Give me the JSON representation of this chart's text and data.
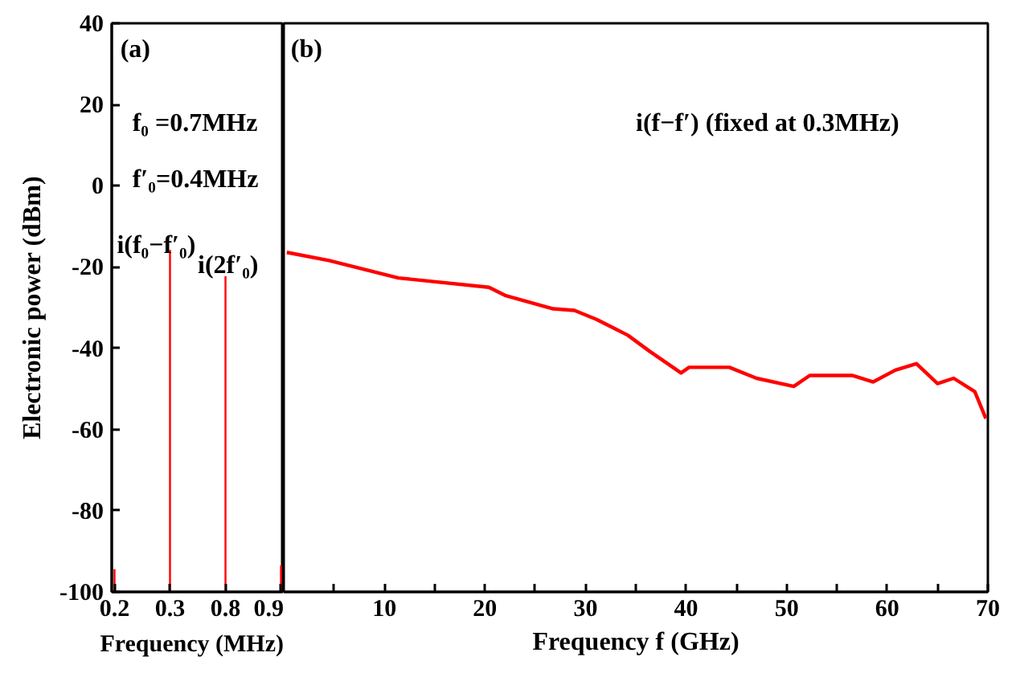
{
  "chart_data": [
    {
      "type": "bar",
      "xlabel": "Frequency (MHz)",
      "ylabel": "Electronic power (dBm)",
      "categories": [
        "0.2",
        "0.3",
        "0.8",
        "0.9"
      ],
      "base": [
        -100,
        -100,
        -100,
        -100
      ],
      "values": [
        5.6,
        84.2,
        77.7,
        6.5
      ],
      "color": "#ff0000",
      "ylim": [
        -100,
        40
      ],
      "yticks": [
        -100,
        -80,
        -60,
        -40,
        -20,
        0,
        20,
        40
      ],
      "annotations": [
        "(a)",
        "f₀ =0.7MHz",
        "f′₀=0.4MHz",
        "i(f₀−f′₀)",
        "i(2f′₀)"
      ]
    },
    {
      "type": "line",
      "xlabel": "Frequency f (GHz)",
      "x": [
        0.3,
        4.5,
        11.4,
        20.4,
        22.0,
        26.8,
        28.9,
        31.1,
        34.2,
        36.4,
        39.5,
        40.3,
        44.3,
        47.0,
        50.7,
        52.3,
        56.5,
        58.6,
        60.8,
        62.9,
        65.0,
        66.6,
        68.7,
        69.8
      ],
      "series": [
        {
          "color": "#ff0000",
          "values": [
            -16.4,
            -18.4,
            -22.7,
            -25.0,
            -27.0,
            -30.3,
            -30.7,
            -32.9,
            -36.8,
            -40.8,
            -46.1,
            -44.7,
            -44.7,
            -47.4,
            -49.4,
            -46.7,
            -46.7,
            -48.3,
            -45.4,
            -43.8,
            -48.7,
            -47.4,
            -50.7,
            -57.3
          ]
        }
      ],
      "xlim": [
        0,
        70
      ],
      "xticks": [
        {
          "value": 5,
          "label": null
        },
        10,
        {
          "value": 15,
          "label": null
        },
        20,
        {
          "value": 25,
          "label": null
        },
        30,
        {
          "value": 35,
          "label": null
        },
        40,
        {
          "value": 45,
          "label": null
        },
        50,
        {
          "value": 55,
          "label": null
        },
        60,
        {
          "value": 65,
          "label": null
        },
        70
      ],
      "ylim": [
        -100,
        40
      ],
      "yticks": [
        -100,
        -80,
        -60,
        -40,
        -20,
        0,
        20,
        40
      ],
      "tick_labels": "x",
      "annotations": [
        "(b)",
        "i(f−f′) (fixed at 0.3MHz)"
      ]
    }
  ]
}
